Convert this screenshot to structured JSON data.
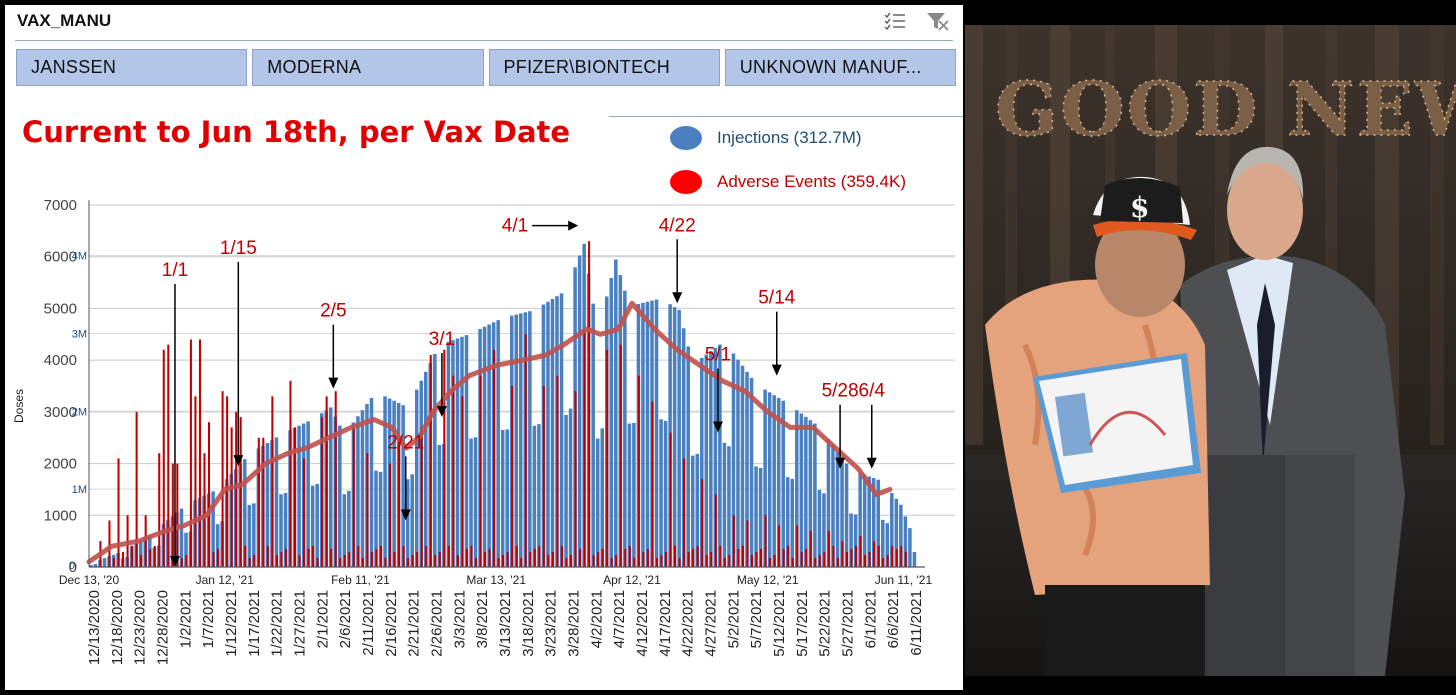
{
  "slicer": {
    "title": "VAX_MANU",
    "buttons": [
      "JANSSEN",
      "MODERNA",
      "PFIZER\\BIONTECH",
      "UNKNOWN MANUF..."
    ],
    "icons": [
      "multi-select-icon",
      "clear-filter-icon"
    ]
  },
  "chart_title": "Current to Jun 18th, per Vax Date",
  "legend": {
    "injections": "Injections (312.7M)",
    "adverse": "Adverse Events (359.4K)"
  },
  "photo": {
    "sign_text": "GOOD NEWS",
    "cap_logo": "$"
  },
  "chart_data": {
    "type": "bar",
    "ylabel": "Doses",
    "y_left_ticks": [
      0,
      1000,
      2000,
      3000,
      4000,
      5000,
      6000,
      7000
    ],
    "y_left_labels": [
      "0",
      "1000",
      "2000",
      "3000",
      "4000",
      "5000",
      "6000",
      "7000"
    ],
    "y_right_labels": [
      "1M",
      "2M",
      "3M",
      "4M"
    ],
    "y_right_values": [
      1000000,
      2000000,
      3000000,
      4000000
    ],
    "y_right_zero_label": "0",
    "ylim": [
      0,
      7000
    ],
    "x_date_labels": [
      "Dec 13, '20",
      "Jan 12, '21",
      "Feb 11, '21",
      "Mar 13, '21",
      "Apr 12, '21",
      "May 12, '21",
      "Jun 11, '21"
    ],
    "x_date_values": [
      "2020-12-13",
      "2021-01-12",
      "2021-02-11",
      "2021-03-13",
      "2021-04-12",
      "2021-05-12",
      "2021-06-11"
    ],
    "x_tick_labels": [
      "12/13/2020",
      "12/18/2020",
      "12/23/2020",
      "12/28/2020",
      "1/2/2021",
      "1/7/2021",
      "1/12/2021",
      "1/17/2021",
      "1/22/2021",
      "1/27/2021",
      "2/1/2021",
      "2/6/2021",
      "2/11/2021",
      "2/16/2021",
      "2/21/2021",
      "2/26/2021",
      "3/3/2021",
      "3/8/2021",
      "3/13/2021",
      "3/18/2021",
      "3/23/2021",
      "3/28/2021",
      "4/2/2021",
      "4/7/2021",
      "4/12/2021",
      "4/17/2021",
      "4/22/2021",
      "4/27/2021",
      "5/2/2021",
      "5/7/2021",
      "5/12/2021",
      "5/17/2021",
      "5/22/2021",
      "5/27/2021",
      "6/1/2021",
      "6/6/2021",
      "6/11/2021"
    ],
    "start_date": "2020-12-13",
    "end_date": "2021-06-14",
    "series": [
      {
        "name": "Injections (312.7M)",
        "color": "#4a80c0",
        "anchor_dates": [
          "2020-12-13",
          "2020-12-20",
          "2020-12-27",
          "2021-01-03",
          "2021-01-10",
          "2021-01-17",
          "2021-01-24",
          "2021-01-31",
          "2021-02-04",
          "2021-02-07",
          "2021-02-14",
          "2021-02-21",
          "2021-02-28",
          "2021-03-07",
          "2021-03-14",
          "2021-03-21",
          "2021-03-28",
          "2021-04-01",
          "2021-04-04",
          "2021-04-08",
          "2021-04-11",
          "2021-04-18",
          "2021-04-22",
          "2021-04-25",
          "2021-05-02",
          "2021-05-09",
          "2021-05-16",
          "2021-05-23",
          "2021-05-30",
          "2021-06-06",
          "2021-06-10",
          "2021-06-13"
        ],
        "anchor_values": [
          50000,
          200000,
          450000,
          800000,
          1000000,
          1450000,
          1700000,
          1900000,
          2050000,
          1700000,
          2250000,
          2050000,
          2850000,
          3000000,
          3200000,
          3300000,
          3550000,
          4150000,
          3000000,
          3950000,
          3350000,
          3450000,
          3300000,
          2600000,
          2900000,
          2350000,
          2100000,
          1800000,
          1250000,
          1100000,
          800000,
          350000
        ],
        "weekend_dip": 0.55
      },
      {
        "name": "Adverse Events (359.4K)",
        "color": "#c00000",
        "spike_dates": [
          "2020-12-15",
          "2020-12-17",
          "2020-12-19",
          "2020-12-21",
          "2020-12-23",
          "2020-12-25",
          "2020-12-28",
          "2020-12-29",
          "2020-12-30",
          "2020-12-31",
          "2021-01-01",
          "2021-01-04",
          "2021-01-05",
          "2021-01-06",
          "2021-01-07",
          "2021-01-08",
          "2021-01-11",
          "2021-01-12",
          "2021-01-13",
          "2021-01-14",
          "2021-01-15",
          "2021-01-19",
          "2021-01-20",
          "2021-01-22",
          "2021-01-26",
          "2021-01-27",
          "2021-01-29",
          "2021-02-02",
          "2021-02-03",
          "2021-02-05",
          "2021-02-09",
          "2021-02-12",
          "2021-02-17",
          "2021-02-19",
          "2021-02-24",
          "2021-02-26",
          "2021-03-01",
          "2021-03-03",
          "2021-03-05",
          "2021-03-09",
          "2021-03-12",
          "2021-03-16",
          "2021-03-19",
          "2021-03-23",
          "2021-03-26",
          "2021-03-30",
          "2021-04-01",
          "2021-04-02",
          "2021-04-06",
          "2021-04-09",
          "2021-04-13",
          "2021-04-16",
          "2021-04-20",
          "2021-04-23",
          "2021-04-27",
          "2021-04-30",
          "2021-05-04",
          "2021-05-07",
          "2021-05-11",
          "2021-05-14",
          "2021-05-18",
          "2021-05-21",
          "2021-05-25",
          "2021-05-28",
          "2021-06-01",
          "2021-06-04",
          "2021-06-08",
          "2021-06-11"
        ],
        "spike_values": [
          500,
          900,
          2100,
          1000,
          3000,
          1000,
          2200,
          4200,
          4300,
          2000,
          2000,
          4400,
          3300,
          4400,
          2200,
          2800,
          3400,
          3300,
          2700,
          3000,
          2900,
          2500,
          2500,
          3300,
          3600,
          2700,
          2100,
          2900,
          3300,
          3400,
          2700,
          2200,
          2000,
          2500,
          2700,
          4100,
          4200,
          3700,
          3300,
          3700,
          4200,
          3500,
          4500,
          3500,
          3700,
          3400,
          4600,
          6300,
          4200,
          4300,
          3700,
          3200,
          2600,
          2100,
          1700,
          1400,
          1000,
          900,
          1000,
          800,
          800,
          700,
          700,
          500,
          600,
          500,
          400,
          300
        ],
        "baseline": 350
      },
      {
        "name": "Adverse Events moving average",
        "color": "#c0504d",
        "x": [
          "2020-12-13",
          "2020-12-18",
          "2020-12-24",
          "2020-12-30",
          "2021-01-03",
          "2021-01-08",
          "2021-01-12",
          "2021-01-16",
          "2021-01-21",
          "2021-01-26",
          "2021-01-30",
          "2021-02-04",
          "2021-02-09",
          "2021-02-14",
          "2021-02-18",
          "2021-02-21",
          "2021-02-24",
          "2021-02-27",
          "2021-03-03",
          "2021-03-07",
          "2021-03-13",
          "2021-03-19",
          "2021-03-24",
          "2021-03-28",
          "2021-04-02",
          "2021-04-05",
          "2021-04-09",
          "2021-04-12",
          "2021-04-17",
          "2021-04-22",
          "2021-04-27",
          "2021-05-02",
          "2021-05-07",
          "2021-05-12",
          "2021-05-17",
          "2021-05-22",
          "2021-05-27",
          "2021-06-01",
          "2021-06-05",
          "2021-06-08"
        ],
        "y": [
          100,
          400,
          500,
          700,
          800,
          1000,
          1500,
          1600,
          2000,
          2200,
          2300,
          2500,
          2700,
          2850,
          2700,
          2300,
          2500,
          3000,
          3400,
          3700,
          3900,
          4000,
          4100,
          4300,
          4600,
          4500,
          4600,
          5100,
          4600,
          4200,
          3900,
          3600,
          3400,
          3000,
          2700,
          2700,
          2300,
          1900,
          1400,
          1500
        ]
      }
    ],
    "annotations": [
      {
        "label": "1/1",
        "date": "2021-01-01",
        "point": 0
      },
      {
        "label": "1/15",
        "date": "2021-01-15",
        "point": 1950
      },
      {
        "label": "2/5",
        "date": "2021-02-05",
        "point": 3450
      },
      {
        "label": "2/21",
        "date": "2021-02-21",
        "point": 900
      },
      {
        "label": "3/1",
        "date": "2021-03-01",
        "point": 2900
      },
      {
        "label": "4/1",
        "date": "2021-04-01",
        "point": 6600
      },
      {
        "label": "4/22",
        "date": "2021-04-22",
        "point": 5100
      },
      {
        "label": "5/1",
        "date": "2021-05-01",
        "point": 2600
      },
      {
        "label": "5/14",
        "date": "2021-05-14",
        "point": 3700
      },
      {
        "label": "5/28",
        "date": "2021-05-28",
        "point": 1900
      },
      {
        "label": "6/4",
        "date": "2021-06-04",
        "point": 1900
      }
    ]
  }
}
